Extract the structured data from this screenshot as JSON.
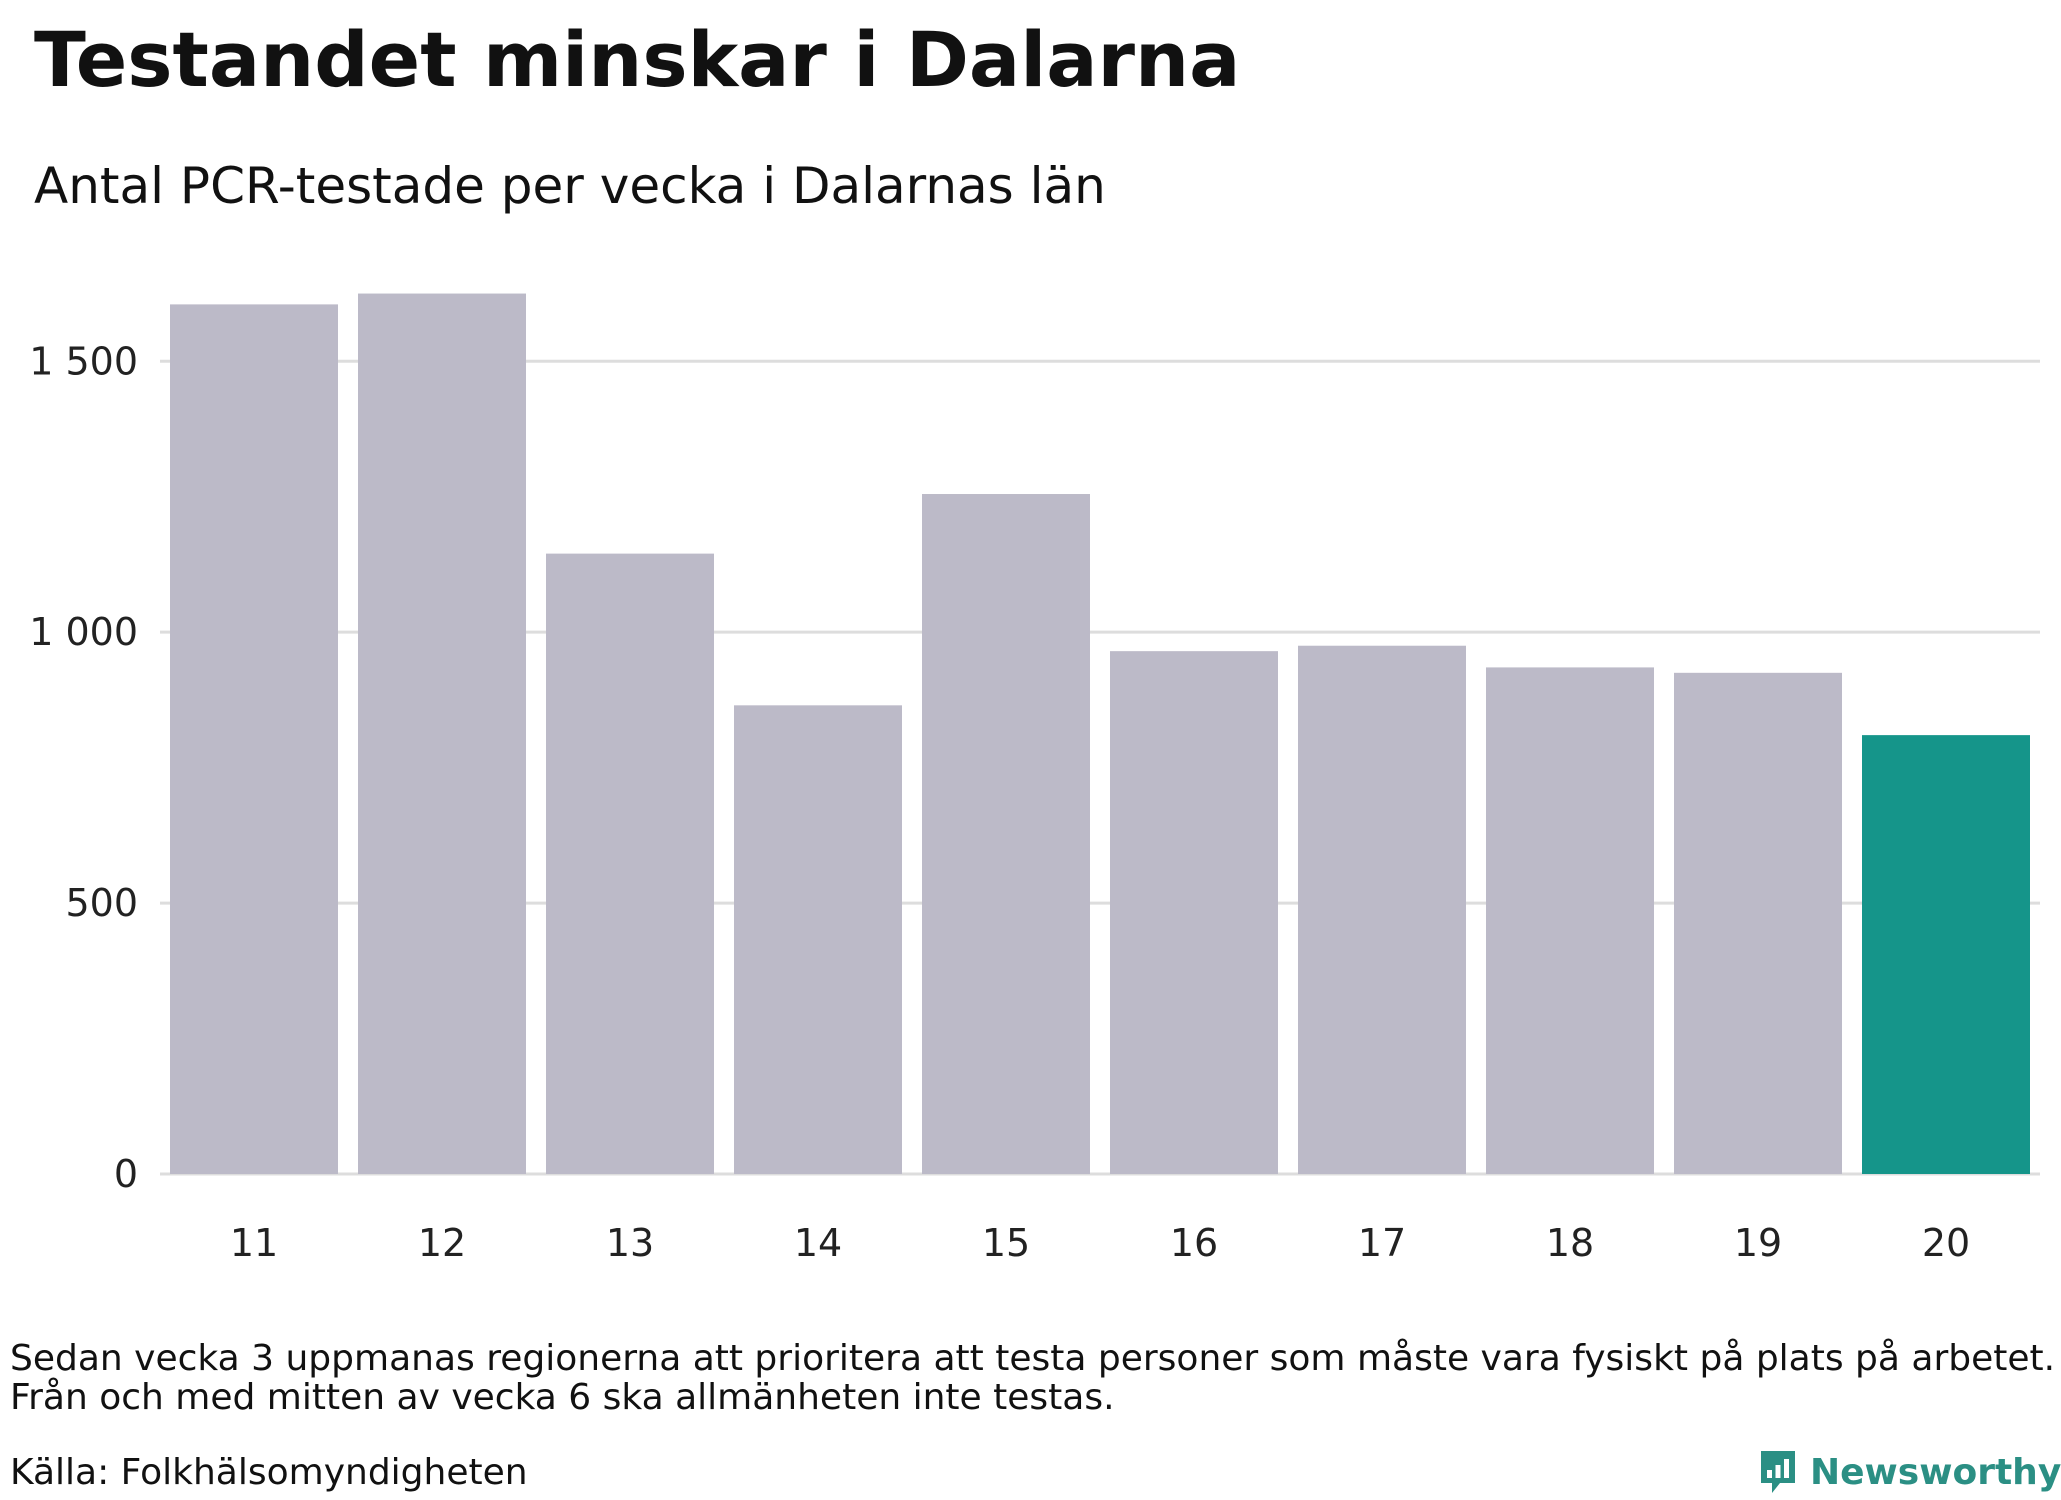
{
  "title": "Testandet minskar i Dalarna",
  "subtitle": "Antal PCR-testade per vecka i Dalarnas län",
  "chart_data": {
    "type": "bar",
    "title": "Testandet minskar i Dalarna",
    "subtitle": "Antal PCR-testade per vecka i Dalarnas län",
    "xlabel": "",
    "ylabel": "",
    "categories": [
      "11",
      "12",
      "13",
      "14",
      "15",
      "16",
      "17",
      "18",
      "19",
      "20"
    ],
    "values": [
      1605,
      1625,
      1145,
      865,
      1255,
      965,
      975,
      935,
      925,
      810
    ],
    "ylim": [
      0,
      1650
    ],
    "yticks": [
      0,
      500,
      1000,
      1500
    ],
    "ytick_labels": [
      "0",
      "500",
      "1 000",
      "1 500"
    ],
    "grid": true,
    "legend": "none",
    "bar_color": "#bcbac8",
    "highlight_color": "#15958a",
    "highlight_index": 9
  },
  "footnote": [
    "Sedan vecka 3 uppmanas regionerna att prioritera att testa personer som måste vara fysiskt på plats på arbetet.",
    "Från och med mitten av vecka 6 ska allmänheten inte testas."
  ],
  "source": "Källa: Folkhälsomyndigheten",
  "brand": {
    "name": "Newsworthy",
    "icon": "newsworthy-logo-icon",
    "color": "#2b8f84"
  }
}
